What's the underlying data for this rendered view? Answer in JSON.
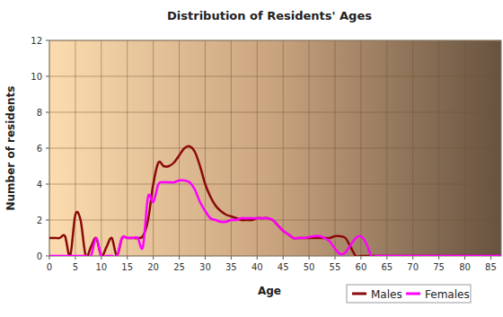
{
  "chart_data": {
    "type": "line",
    "title": "Distribution of Residents' Ages",
    "x_label": "Age",
    "y_label": "Number of residents",
    "x": [
      0,
      1,
      2,
      3,
      4,
      5,
      6,
      7,
      8,
      9,
      10,
      11,
      12,
      13,
      14,
      15,
      16,
      17,
      18,
      19,
      20,
      21,
      22,
      23,
      24,
      25,
      26,
      27,
      28,
      29,
      30,
      31,
      32,
      33,
      34,
      35,
      36,
      37,
      38,
      39,
      40,
      41,
      42,
      43,
      44,
      45,
      46,
      47,
      48,
      49,
      50,
      51,
      52,
      53,
      54,
      55,
      56,
      57,
      58,
      59,
      60,
      61,
      62,
      63,
      64,
      65,
      66,
      67,
      68,
      69,
      70,
      71,
      72,
      73,
      74,
      75,
      76,
      77,
      78,
      79,
      80,
      81,
      82,
      83,
      84,
      85,
      86,
      87
    ],
    "series": [
      {
        "name": "Males",
        "color": "#8b0a0a",
        "values": [
          1,
          1,
          1,
          1.1,
          0,
          2.3,
          2,
          0,
          0.5,
          1,
          0,
          0.5,
          1,
          0,
          1,
          1,
          1,
          1,
          1.1,
          2,
          4,
          5.2,
          5,
          5,
          5.2,
          5.6,
          6,
          6.1,
          5.8,
          5,
          4,
          3.3,
          2.8,
          2.5,
          2.3,
          2.2,
          2.1,
          2,
          2,
          2,
          2.1,
          2.1,
          2.1,
          2,
          1.7,
          1.4,
          1.2,
          1,
          1,
          1,
          1,
          1,
          1,
          1,
          1,
          1.1,
          1.1,
          1,
          0.5,
          0,
          0,
          0,
          0,
          0,
          0,
          0,
          0,
          0,
          0,
          0,
          0,
          0,
          0,
          0,
          0,
          0,
          0,
          0,
          0,
          0,
          0,
          0,
          0,
          0,
          0,
          0,
          0,
          0
        ]
      },
      {
        "name": "Females",
        "color": "#ff00ff",
        "values": [
          0,
          0,
          0,
          0,
          0,
          0,
          0,
          0,
          0,
          1,
          0,
          0,
          0,
          0,
          1,
          1,
          1,
          1,
          0.5,
          3.3,
          3,
          4,
          4.1,
          4.1,
          4.1,
          4.2,
          4.2,
          4.1,
          3.7,
          3,
          2.5,
          2.1,
          2,
          1.9,
          1.9,
          2,
          2,
          2.1,
          2.1,
          2.1,
          2.1,
          2.1,
          2.1,
          2,
          1.7,
          1.4,
          1.2,
          1,
          1,
          1,
          1.05,
          1.1,
          1.1,
          1,
          0.8,
          0.4,
          0.1,
          0.2,
          0.6,
          1,
          1.1,
          0.7,
          0,
          0,
          0,
          0,
          0,
          0,
          0,
          0,
          0,
          0,
          0,
          0,
          0,
          0,
          0,
          0,
          0,
          0,
          0,
          0,
          0,
          0,
          0,
          0,
          0,
          0
        ]
      }
    ],
    "xlim": [
      0,
      87
    ],
    "xticks": [
      0,
      5,
      10,
      15,
      20,
      25,
      30,
      35,
      40,
      45,
      50,
      55,
      60,
      65,
      70,
      75,
      80,
      85
    ],
    "ylim": [
      0,
      12
    ],
    "yticks": [
      0,
      2,
      4,
      6,
      8,
      10,
      12
    ],
    "grid": true,
    "legend": "bottom right"
  }
}
